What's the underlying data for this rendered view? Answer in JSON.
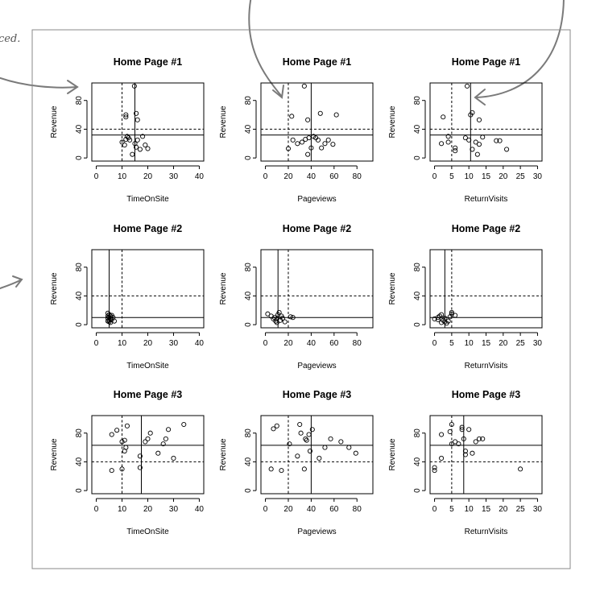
{
  "annotation": {
    "text": "ced."
  },
  "chart_data": [
    {
      "type": "scatter",
      "title": "Home Page #1",
      "xlabel": "TimeOnSite",
      "ylabel": "Revenue",
      "xlim": [
        0,
        40
      ],
      "ylim": [
        0,
        100
      ],
      "xticks": [
        0,
        10,
        20,
        30,
        40
      ],
      "yticks": [
        0,
        40,
        80
      ],
      "vline_solid": 15,
      "vline_dashed": 10,
      "hline_solid": 32,
      "hline_dashed": 40,
      "points": [
        [
          14.8,
          100
        ],
        [
          11.5,
          60
        ],
        [
          11.5,
          57
        ],
        [
          15.5,
          62
        ],
        [
          16,
          53
        ],
        [
          10,
          22
        ],
        [
          11,
          18
        ],
        [
          11.5,
          26
        ],
        [
          12,
          30
        ],
        [
          12.5,
          28
        ],
        [
          13,
          25
        ],
        [
          14,
          5
        ],
        [
          15,
          20
        ],
        [
          15.5,
          15
        ],
        [
          16,
          25
        ],
        [
          17,
          12
        ],
        [
          18,
          30
        ],
        [
          19,
          18
        ],
        [
          20,
          13
        ]
      ]
    },
    {
      "type": "scatter",
      "title": "Home Page #1",
      "xlabel": "Pageviews",
      "ylabel": "Revenue",
      "xlim": [
        0,
        90
      ],
      "ylim": [
        0,
        100
      ],
      "xticks": [
        0,
        20,
        40,
        60,
        80
      ],
      "yticks": [
        0,
        40,
        80
      ],
      "vline_solid": 40,
      "vline_dashed": 20,
      "hline_solid": 32,
      "hline_dashed": 40,
      "points": [
        [
          34,
          100
        ],
        [
          37,
          53
        ],
        [
          23,
          58
        ],
        [
          48,
          62
        ],
        [
          62,
          60
        ],
        [
          20,
          13
        ],
        [
          24,
          25
        ],
        [
          28,
          20
        ],
        [
          32,
          22
        ],
        [
          35,
          26
        ],
        [
          38,
          28
        ],
        [
          40,
          14
        ],
        [
          42,
          30
        ],
        [
          44,
          28
        ],
        [
          46,
          25
        ],
        [
          49,
          14
        ],
        [
          52,
          20
        ],
        [
          55,
          25
        ],
        [
          59,
          19
        ],
        [
          37,
          5
        ]
      ]
    },
    {
      "type": "scatter",
      "title": "Home Page #1",
      "xlabel": "ReturnVisits",
      "ylabel": "Revenue",
      "xlim": [
        0,
        30
      ],
      "ylim": [
        0,
        100
      ],
      "xticks": [
        0,
        5,
        10,
        15,
        20,
        25,
        30
      ],
      "yticks": [
        0,
        40,
        80
      ],
      "vline_solid": 10.5,
      "vline_dashed": 5,
      "hline_solid": 32,
      "hline_dashed": 40,
      "points": [
        [
          9.5,
          100
        ],
        [
          2.5,
          57
        ],
        [
          10.5,
          60
        ],
        [
          11,
          63
        ],
        [
          13,
          53
        ],
        [
          2,
          20
        ],
        [
          4,
          22
        ],
        [
          4,
          30
        ],
        [
          6,
          14
        ],
        [
          6,
          10
        ],
        [
          9,
          28
        ],
        [
          10,
          25
        ],
        [
          11,
          12
        ],
        [
          12,
          22
        ],
        [
          13,
          19
        ],
        [
          14,
          29
        ],
        [
          18,
          24
        ],
        [
          19,
          24
        ],
        [
          21,
          12
        ],
        [
          12.5,
          5
        ]
      ]
    },
    {
      "type": "scatter",
      "title": "Home Page #2",
      "xlabel": "TimeOnSite",
      "ylabel": "Revenue",
      "xlim": [
        0,
        40
      ],
      "ylim": [
        0,
        100
      ],
      "xticks": [
        0,
        10,
        20,
        30,
        40
      ],
      "yticks": [
        0,
        40,
        80
      ],
      "vline_solid": 5,
      "vline_dashed": 10,
      "hline_solid": 10,
      "hline_dashed": 40,
      "points": [
        [
          4.5,
          16
        ],
        [
          5,
          14
        ],
        [
          5.5,
          12
        ],
        [
          5,
          10
        ],
        [
          4.5,
          9
        ],
        [
          5.5,
          8
        ],
        [
          5,
          6
        ],
        [
          4.5,
          5
        ],
        [
          6,
          7
        ],
        [
          5,
          4
        ],
        [
          6.5,
          10
        ],
        [
          5.5,
          3
        ],
        [
          7,
          5
        ],
        [
          4.5,
          12
        ],
        [
          6,
          13
        ]
      ]
    },
    {
      "type": "scatter",
      "title": "Home Page #2",
      "xlabel": "Pageviews",
      "ylabel": "Revenue",
      "xlim": [
        0,
        90
      ],
      "ylim": [
        0,
        100
      ],
      "xticks": [
        0,
        20,
        40,
        60,
        80
      ],
      "yticks": [
        0,
        40,
        80
      ],
      "vline_solid": 11,
      "vline_dashed": 20,
      "hline_solid": 10,
      "hline_dashed": 40,
      "points": [
        [
          2,
          15
        ],
        [
          5,
          12
        ],
        [
          8,
          10
        ],
        [
          10,
          8
        ],
        [
          11,
          14
        ],
        [
          12,
          17
        ],
        [
          9,
          5
        ],
        [
          10,
          3
        ],
        [
          13,
          6
        ],
        [
          15,
          9
        ],
        [
          17,
          4
        ],
        [
          22,
          11
        ],
        [
          24,
          10
        ],
        [
          7,
          8
        ],
        [
          14,
          12
        ]
      ]
    },
    {
      "type": "scatter",
      "title": "Home Page #2",
      "xlabel": "ReturnVisits",
      "ylabel": "Revenue",
      "xlim": [
        0,
        30
      ],
      "ylim": [
        0,
        100
      ],
      "xticks": [
        0,
        5,
        10,
        15,
        20,
        25,
        30
      ],
      "yticks": [
        0,
        40,
        80
      ],
      "vline_solid": 3,
      "vline_dashed": 5,
      "hline_solid": 10,
      "hline_dashed": 40,
      "points": [
        [
          0,
          8
        ],
        [
          1,
          10
        ],
        [
          1.5,
          12
        ],
        [
          2,
          14
        ],
        [
          2.5,
          6
        ],
        [
          3,
          9
        ],
        [
          3,
          4
        ],
        [
          4,
          5
        ],
        [
          4.5,
          11
        ],
        [
          5,
          15
        ],
        [
          5,
          17
        ],
        [
          6,
          13
        ],
        [
          2,
          3
        ],
        [
          3.5,
          2
        ],
        [
          1,
          7
        ]
      ]
    },
    {
      "type": "scatter",
      "title": "Home Page #3",
      "xlabel": "TimeOnSite",
      "ylabel": "Revenue",
      "xlim": [
        0,
        40
      ],
      "ylim": [
        0,
        100
      ],
      "xticks": [
        0,
        10,
        20,
        30,
        40
      ],
      "yticks": [
        0,
        40,
        80
      ],
      "vline_solid": 17.5,
      "vline_dashed": 10,
      "hline_solid": 63,
      "hline_dashed": 40,
      "points": [
        [
          6,
          78
        ],
        [
          8,
          84
        ],
        [
          10,
          68
        ],
        [
          11,
          70
        ],
        [
          11,
          55
        ],
        [
          11.5,
          60
        ],
        [
          12,
          90
        ],
        [
          19,
          68
        ],
        [
          20,
          72
        ],
        [
          21,
          80
        ],
        [
          24,
          52
        ],
        [
          26,
          65
        ],
        [
          27,
          72
        ],
        [
          28,
          85
        ],
        [
          30,
          45
        ],
        [
          34,
          92
        ],
        [
          6,
          28
        ],
        [
          10,
          30
        ],
        [
          17,
          32
        ],
        [
          17,
          48
        ]
      ]
    },
    {
      "type": "scatter",
      "title": "Home Page #3",
      "xlabel": "Pageviews",
      "ylabel": "Revenue",
      "xlim": [
        0,
        90
      ],
      "ylim": [
        0,
        100
      ],
      "xticks": [
        0,
        20,
        40,
        60,
        80
      ],
      "yticks": [
        0,
        40,
        80
      ],
      "vline_solid": 40,
      "vline_dashed": 20,
      "hline_solid": 63,
      "hline_dashed": 40,
      "points": [
        [
          7,
          86
        ],
        [
          10,
          90
        ],
        [
          21,
          65
        ],
        [
          30,
          92
        ],
        [
          31,
          80
        ],
        [
          35,
          72
        ],
        [
          36,
          70
        ],
        [
          38,
          78
        ],
        [
          41,
          85
        ],
        [
          47,
          45
        ],
        [
          52,
          60
        ],
        [
          57,
          72
        ],
        [
          66,
          68
        ],
        [
          73,
          60
        ],
        [
          79,
          52
        ],
        [
          5,
          30
        ],
        [
          14,
          28
        ],
        [
          28,
          48
        ],
        [
          34,
          30
        ],
        [
          39,
          55
        ]
      ]
    },
    {
      "type": "scatter",
      "title": "Home Page #3",
      "xlabel": "ReturnVisits",
      "ylabel": "Revenue",
      "xlim": [
        0,
        30
      ],
      "ylim": [
        0,
        100
      ],
      "xticks": [
        0,
        5,
        10,
        15,
        20,
        25,
        30
      ],
      "yticks": [
        0,
        40,
        80
      ],
      "vline_solid": 8.5,
      "vline_dashed": 5,
      "hline_solid": 63,
      "hline_dashed": 40,
      "points": [
        [
          0,
          28
        ],
        [
          0,
          32
        ],
        [
          2,
          45
        ],
        [
          2,
          78
        ],
        [
          4.5,
          82
        ],
        [
          5,
          92
        ],
        [
          6,
          68
        ],
        [
          7,
          65
        ],
        [
          8,
          88
        ],
        [
          8,
          85
        ],
        [
          8.5,
          72
        ],
        [
          9,
          55
        ],
        [
          9,
          50
        ],
        [
          10,
          85
        ],
        [
          11,
          52
        ],
        [
          12,
          68
        ],
        [
          13,
          72
        ],
        [
          14,
          72
        ],
        [
          25,
          30
        ],
        [
          5,
          65
        ]
      ]
    }
  ]
}
